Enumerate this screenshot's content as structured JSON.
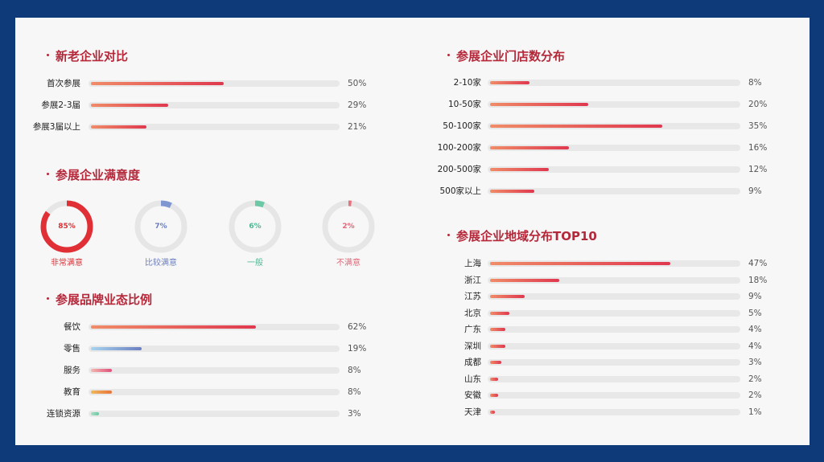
{
  "colors": {
    "background": "#0e3a7a",
    "panel": "#f7f7f7",
    "title": "#b4283a",
    "track": "#e8e8e8"
  },
  "sections": {
    "new_old": "新老企业对比",
    "satisfaction": "参展企业满意度",
    "brand": "参展品牌业态比例",
    "stores": "参展企业门店数分布",
    "region": "参展企业地域分布TOP10"
  },
  "chart_data": [
    {
      "id": "new_old",
      "type": "bar",
      "title": "新老企业对比",
      "categories": [
        "首次参展",
        "参展2-3届",
        "参展3届以上"
      ],
      "values": [
        50,
        29,
        21
      ],
      "value_labels": [
        "50%",
        "29%",
        "21%"
      ],
      "colors": [
        [
          "#f08c68",
          "#e0384f"
        ],
        [
          "#f08c68",
          "#e0384f"
        ],
        [
          "#f08c68",
          "#e0384f"
        ]
      ]
    },
    {
      "id": "satisfaction",
      "type": "pie",
      "title": "参展企业满意度",
      "categories": [
        "非常满意",
        "比较满意",
        "一般",
        "不满意"
      ],
      "values": [
        85,
        7,
        6,
        2
      ],
      "value_labels": [
        "85%",
        "7%",
        "6%",
        "2%"
      ],
      "colors": [
        "#e02f35",
        "#7f96d1",
        "#6cc8a5",
        "#e8737e"
      ],
      "label_colors": [
        "#d6353a",
        "#6b7fc2",
        "#4fb893",
        "#e0687a"
      ]
    },
    {
      "id": "brand",
      "type": "bar",
      "title": "参展品牌业态比例",
      "categories": [
        "餐饮",
        "零售",
        "服务",
        "教育",
        "连锁资源"
      ],
      "values": [
        62,
        19,
        8,
        8,
        3
      ],
      "value_labels": [
        "62%",
        "19%",
        "8%",
        "8%",
        "3%"
      ],
      "colors": [
        [
          "#f08c68",
          "#e0384f"
        ],
        [
          "#a8d4ee",
          "#6b7fc2"
        ],
        [
          "#f3b8b0",
          "#e0507a"
        ],
        [
          "#f0b85a",
          "#e8743a"
        ],
        [
          "#a8e0c0",
          "#6cc8a5"
        ]
      ]
    },
    {
      "id": "stores",
      "type": "bar",
      "title": "参展企业门店数分布",
      "categories": [
        "2-10家",
        "10-50家",
        "50-100家",
        "100-200家",
        "200-500家",
        "500家以上"
      ],
      "values": [
        8,
        20,
        35,
        16,
        12,
        9
      ],
      "value_labels": [
        "8%",
        "20%",
        "35%",
        "16%",
        "12%",
        "9%"
      ],
      "colors": [
        [
          "#f08c68",
          "#e0384f"
        ]
      ]
    },
    {
      "id": "region",
      "type": "bar",
      "title": "参展企业地域分布TOP10",
      "categories": [
        "上海",
        "浙江",
        "江苏",
        "北京",
        "广东",
        "深圳",
        "成都",
        "山东",
        "安徽",
        "天津"
      ],
      "values": [
        47,
        18,
        9,
        5,
        4,
        4,
        3,
        2,
        2,
        1
      ],
      "value_labels": [
        "47%",
        "18%",
        "9%",
        "5%",
        "4%",
        "4%",
        "3%",
        "2%",
        "2%",
        "1%"
      ],
      "colors": [
        [
          "#f08c68",
          "#e0384f"
        ]
      ]
    }
  ]
}
